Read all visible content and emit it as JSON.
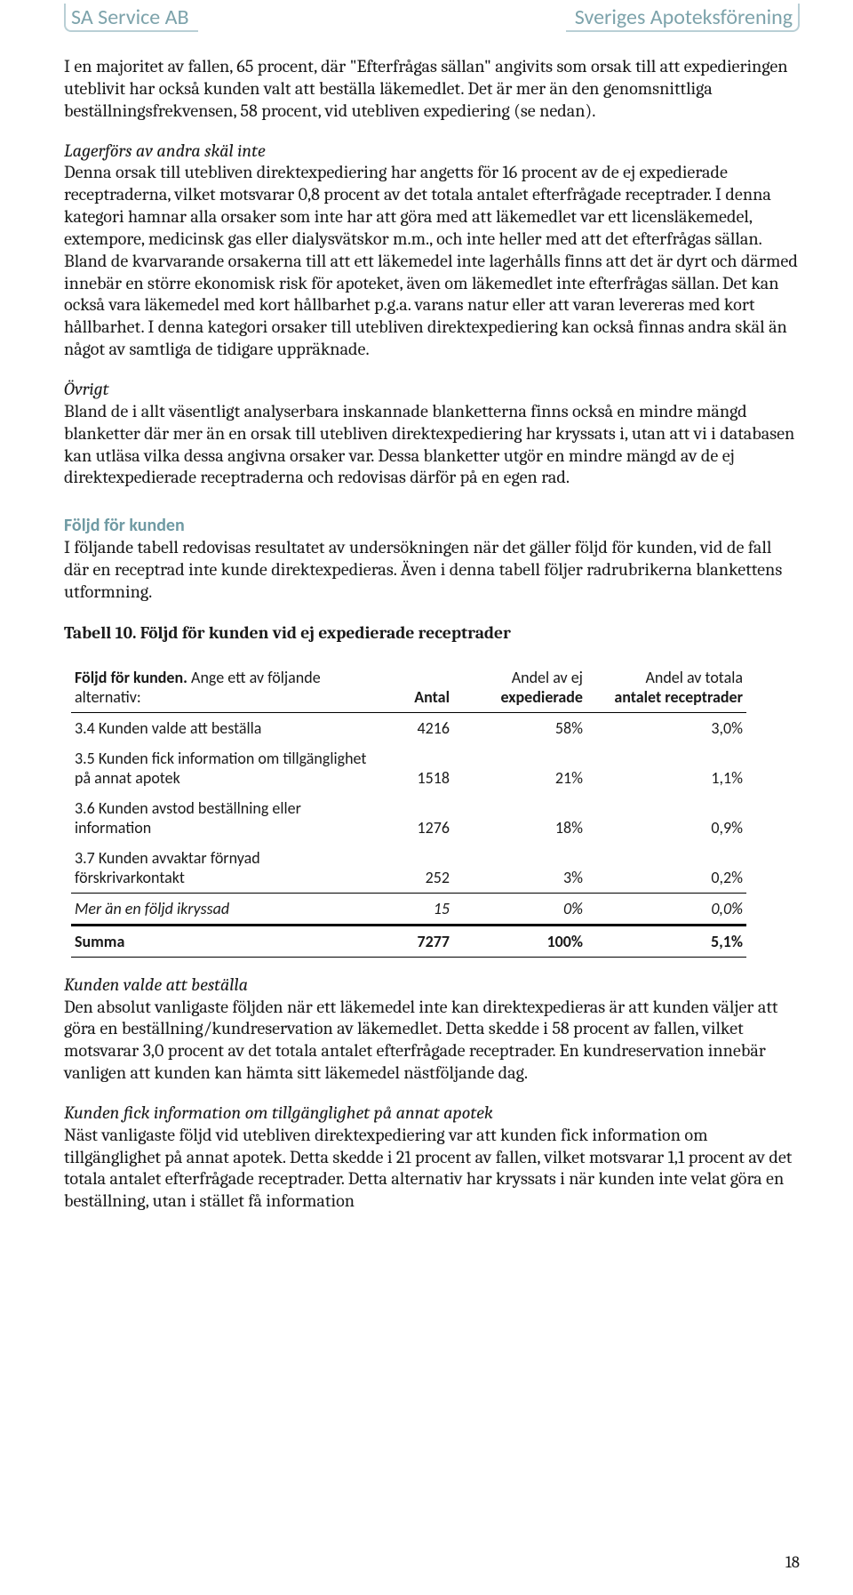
{
  "header": {
    "left": "SA Service AB",
    "right": "Sveriges Apoteksförening"
  },
  "para1": "I en majoritet av fallen, 65 procent, där \"Efterfrågas sällan\" angivits som orsak till att expedieringen uteblivit har också kunden valt att beställa läkemedlet. Det är mer än den genomsnittliga beställningsfrekvensen, 58 procent, vid utebliven expediering (se nedan).",
  "sec_lagerfors": {
    "title": "Lagerförs av andra skäl inte",
    "body": "Denna orsak till utebliven direktexpediering har angetts för 16 procent av de ej expedierade receptraderna, vilket motsvarar 0,8 procent av det totala antalet efterfrågade receptrader. I denna kategori hamnar alla orsaker som inte har att göra med att läkemedlet var ett licensläkemedel, extempore, medicinsk gas eller dialysvätskor m.m., och inte heller med att det efterfrågas sällan. Bland de kvarvarande orsakerna till att ett läkemedel inte lagerhålls finns att det är dyrt och därmed innebär en större ekonomisk risk för apoteket, även om läkemedlet inte efterfrågas sällan. Det kan också vara läkemedel med kort hållbarhet p.g.a. varans natur eller att varan levereras med kort hållbarhet. I denna kategori orsaker till utebliven direktexpediering kan också finnas andra skäl än något av samtliga de tidigare uppräknade."
  },
  "sec_ovrigt": {
    "title": "Övrigt",
    "body": "Bland de i allt väsentligt analyserbara inskannade blanketterna finns också en mindre mängd blanketter där mer än en orsak till utebliven direktexpediering har kryssats i, utan att vi i databasen kan utläsa vilka dessa angivna orsaker var. Dessa blanketter utgör en mindre mängd av de ej direktexpedierade receptraderna och redovisas därför på en egen rad."
  },
  "foljd_heading": "Följd för kunden",
  "foljd_intro": "I följande tabell redovisas resultatet av undersökningen när det gäller följd för kunden, vid de fall där en receptrad inte kunde direktexpedieras. Även i denna tabell följer radrubrikerna blankettens utformning.",
  "table_caption": "Tabell 10. Följd för kunden vid ej expedierade receptrader",
  "table": {
    "header": {
      "label_strong": "Följd för kunden.",
      "label_rest": " Ange ett av följande alternativ:",
      "c1": "Antal",
      "c2a": "Andel av ej",
      "c2b": "expedierade",
      "c3a": "Andel av totala",
      "c3b": "antalet receptrader"
    },
    "rows": [
      {
        "label": "3.4 Kunden valde att beställa",
        "n": "4216",
        "p1": "58%",
        "p2": "3,0%"
      },
      {
        "label": "3.5 Kunden fick information om tillgänglighet på annat apotek",
        "n": "1518",
        "p1": "21%",
        "p2": "1,1%"
      },
      {
        "label": "3.6 Kunden avstod beställning eller information",
        "n": "1276",
        "p1": "18%",
        "p2": "0,9%"
      },
      {
        "label": "3.7 Kunden avvaktar förnyad förskrivarkontakt",
        "n": "252",
        "p1": "3%",
        "p2": "0,2%"
      }
    ],
    "mer": {
      "label": "Mer än en följd ikryssad",
      "n": "15",
      "p1": "0%",
      "p2": "0,0%"
    },
    "summa": {
      "label": "Summa",
      "n": "7277",
      "p1": "100%",
      "p2": "5,1%"
    }
  },
  "sec_kunden_valde": {
    "title": "Kunden valde att beställa",
    "body": "Den absolut vanligaste följden när ett läkemedel inte kan direktexpedieras är att kunden väljer att göra en beställning/kundreservation av läkemedlet. Detta skedde i 58 procent av fallen, vilket motsvarar 3,0 procent av det totala antalet efterfrågade receptrader. En kundreservation innebär vanligen att kunden kan hämta sitt läkemedel nästföljande dag."
  },
  "sec_kunden_fick": {
    "title": "Kunden fick information om tillgänglighet på annat apotek",
    "body": "Näst vanligaste följd vid utebliven direktexpediering var att kunden fick information om tillgänglighet på annat apotek. Detta skedde i 21 procent av fallen, vilket motsvarar 1,1 procent av det totala antalet efterfrågade receptrader. Detta alternativ har kryssats i när kunden inte velat göra en beställning, utan i stället få information"
  },
  "page_number": "18"
}
